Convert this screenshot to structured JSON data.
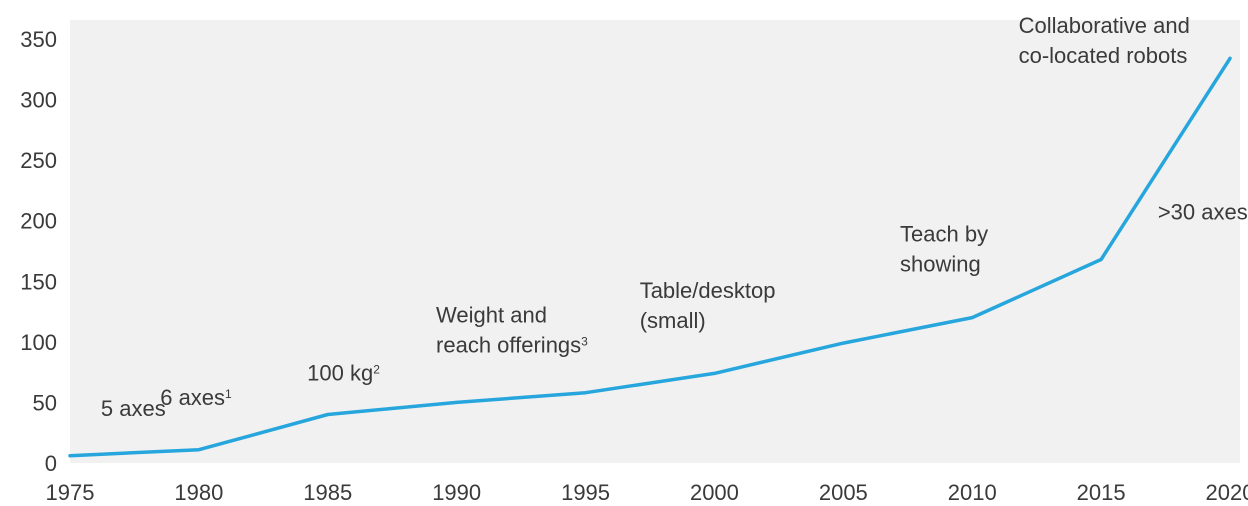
{
  "chart_data": {
    "type": "line",
    "title": "",
    "xlabel": "",
    "ylabel": "",
    "x": [
      1975,
      1980,
      1985,
      1990,
      1995,
      2000,
      2005,
      2010,
      2015,
      2020
    ],
    "series": [
      {
        "values": [
          6,
          11,
          40,
          50,
          58,
          74,
          99,
          120,
          168,
          334
        ]
      }
    ],
    "xlim": [
      1975,
      2020
    ],
    "ylim": [
      0,
      350
    ],
    "x_ticks": [
      "1975",
      "1980",
      "1985",
      "1990",
      "1995",
      "2000",
      "2005",
      "2010",
      "2015",
      "2020"
    ],
    "y_ticks": [
      "0",
      "50",
      "100",
      "150",
      "200",
      "250",
      "300",
      "350"
    ],
    "grid": false,
    "legend": "none",
    "line_color": "#27a6dd",
    "background_color": "#f1f1f1",
    "annotations": [
      {
        "lines": [
          "5 axes"
        ],
        "sup": "",
        "x": 1976.2,
        "y": 39
      },
      {
        "lines": [
          "6 axes"
        ],
        "sup": "1",
        "x": 1978.5,
        "y": 48
      },
      {
        "lines": [
          "100 kg"
        ],
        "sup": "2",
        "x": 1984.2,
        "y": 68
      },
      {
        "lines": [
          "Weight and",
          "reach offerings"
        ],
        "sup": "3",
        "x": 1989.2,
        "y": 116
      },
      {
        "lines": [
          "Table/desktop",
          "(small)"
        ],
        "sup": "",
        "x": 1997.1,
        "y": 136
      },
      {
        "lines": [
          "Teach by",
          "showing"
        ],
        "sup": "",
        "x": 2007.2,
        "y": 183
      },
      {
        "lines": [
          "Collaborative and",
          "co-located robots"
        ],
        "sup": "",
        "x": 2011.8,
        "y": 355
      },
      {
        "lines": [
          ">30 axes"
        ],
        "sup": "",
        "x": 2017.2,
        "y": 201
      }
    ]
  }
}
